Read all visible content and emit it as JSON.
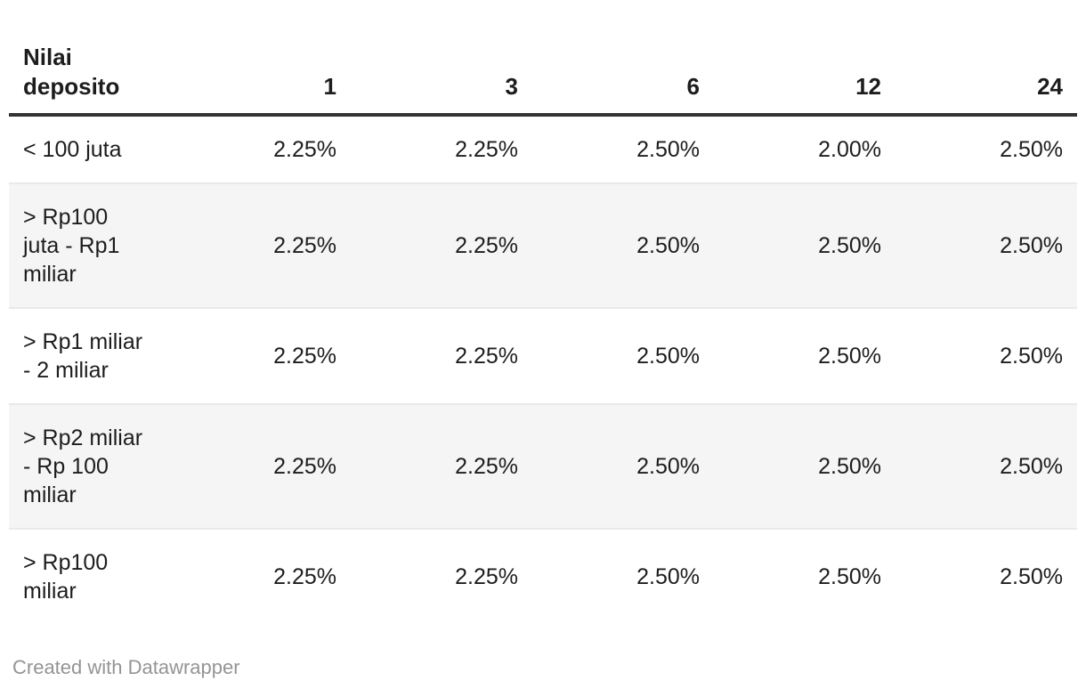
{
  "chart_data": {
    "type": "table",
    "header_label": "Nilai\ndeposito",
    "columns": [
      "1",
      "3",
      "6",
      "12",
      "24"
    ],
    "rows": [
      {
        "label": "< 100 juta",
        "values": [
          "2.25%",
          "2.25%",
          "2.50%",
          "2.00%",
          "2.50%"
        ]
      },
      {
        "label": "> Rp100\njuta - Rp1\nmiliar",
        "values": [
          "2.25%",
          "2.25%",
          "2.50%",
          "2.50%",
          "2.50%"
        ]
      },
      {
        "label": "> Rp1 miliar\n- 2 miliar",
        "values": [
          "2.25%",
          "2.25%",
          "2.50%",
          "2.50%",
          "2.50%"
        ]
      },
      {
        "label": "> Rp2 miliar\n- Rp 100\nmiliar",
        "values": [
          "2.25%",
          "2.25%",
          "2.50%",
          "2.50%",
          "2.50%"
        ]
      },
      {
        "label": "> Rp100\nmiliar",
        "values": [
          "2.25%",
          "2.25%",
          "2.50%",
          "2.50%",
          "2.50%"
        ]
      }
    ],
    "layout_hints": {
      "striped_rows": "even",
      "header_alignment": "bottom",
      "value_alignment": "right"
    }
  },
  "footer": {
    "credit": "Created with Datawrapper"
  },
  "colors": {
    "text": "#1d1d1d",
    "header_rule": "#333333",
    "row_rule": "#e9e9e9",
    "stripe": "#f5f5f5",
    "credit_text": "#949494",
    "background": "#ffffff"
  }
}
